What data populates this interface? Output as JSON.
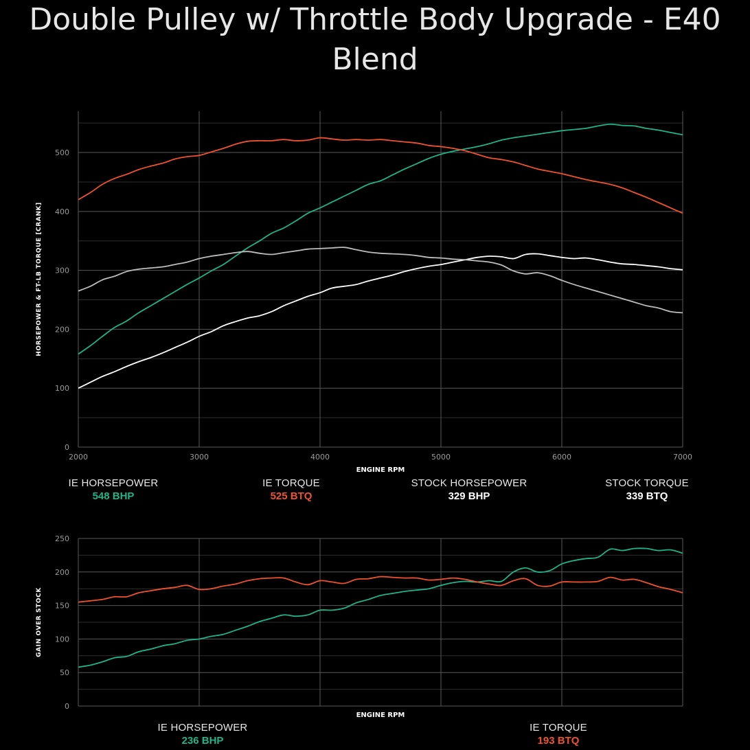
{
  "title": "Double Pulley w/ Throttle Body Upgrade - E40 Blend",
  "colors": {
    "ie_hp": "#1fb489",
    "ie_tq": "#f0522e",
    "stock_hp": "#ffffff",
    "stock_tq": "#bdbdbd",
    "grid_major": "#5a5a5a",
    "grid_minor": "#2e2e2e",
    "axis_text": "#9a9a9a"
  },
  "chart_data": [
    {
      "type": "line",
      "xlabel": "ENGINE RPM",
      "ylabel": "HORSEPOWER & FT-LB TORQUE [CRANK]",
      "xlim": [
        2000,
        7000
      ],
      "ylim": [
        0,
        570
      ],
      "x_ticks": [
        2000,
        3000,
        4000,
        5000,
        6000,
        7000
      ],
      "y_ticks": [
        0,
        100,
        200,
        300,
        400,
        500
      ],
      "grid": true,
      "series": [
        {
          "name": "IE HORSEPOWER",
          "color_key": "ie_hp",
          "x": [
            2000,
            2100,
            2200,
            2300,
            2400,
            2500,
            2600,
            2700,
            2800,
            2900,
            3000,
            3100,
            3200,
            3300,
            3400,
            3500,
            3600,
            3700,
            3800,
            3900,
            4000,
            4100,
            4200,
            4300,
            4400,
            4500,
            4600,
            4700,
            4800,
            4900,
            5000,
            5100,
            5200,
            5300,
            5400,
            5500,
            5600,
            5700,
            5800,
            5900,
            6000,
            6100,
            6200,
            6300,
            6400,
            6500,
            6600,
            6700,
            6800,
            6900,
            7000
          ],
          "y": [
            158,
            172,
            188,
            203,
            214,
            228,
            240,
            252,
            264,
            276,
            287,
            299,
            310,
            324,
            338,
            350,
            363,
            372,
            384,
            397,
            406,
            416,
            426,
            436,
            446,
            452,
            462,
            472,
            481,
            490,
            497,
            502,
            506,
            510,
            515,
            521,
            525,
            528,
            531,
            534,
            537,
            539,
            541,
            545,
            548,
            546,
            545,
            541,
            538,
            534,
            530
          ]
        },
        {
          "name": "IE TORQUE",
          "color_key": "ie_tq",
          "x": [
            2000,
            2100,
            2200,
            2300,
            2400,
            2500,
            2600,
            2700,
            2800,
            2900,
            3000,
            3100,
            3200,
            3300,
            3400,
            3500,
            3600,
            3700,
            3800,
            3900,
            4000,
            4100,
            4200,
            4300,
            4400,
            4500,
            4600,
            4700,
            4800,
            4900,
            5000,
            5100,
            5200,
            5300,
            5400,
            5500,
            5600,
            5700,
            5800,
            5900,
            6000,
            6100,
            6200,
            6300,
            6400,
            6500,
            6600,
            6700,
            6800,
            6900,
            7000
          ],
          "y": [
            420,
            432,
            446,
            456,
            463,
            471,
            477,
            482,
            489,
            493,
            495,
            501,
            507,
            514,
            519,
            520,
            520,
            522,
            520,
            521,
            525,
            523,
            521,
            522,
            521,
            522,
            520,
            518,
            516,
            512,
            510,
            507,
            503,
            497,
            491,
            488,
            484,
            478,
            472,
            468,
            464,
            459,
            454,
            450,
            446,
            440,
            432,
            424,
            415,
            406,
            397
          ]
        },
        {
          "name": "STOCK HORSEPOWER",
          "color_key": "stock_hp",
          "x": [
            2000,
            2100,
            2200,
            2300,
            2400,
            2500,
            2600,
            2700,
            2800,
            2900,
            3000,
            3100,
            3200,
            3300,
            3400,
            3500,
            3600,
            3700,
            3800,
            3900,
            4000,
            4100,
            4200,
            4300,
            4400,
            4500,
            4600,
            4700,
            4800,
            4900,
            5000,
            5100,
            5200,
            5300,
            5400,
            5500,
            5600,
            5700,
            5800,
            5900,
            6000,
            6100,
            6200,
            6300,
            6400,
            6500,
            6600,
            6700,
            6800,
            6900,
            7000
          ],
          "y": [
            100,
            110,
            120,
            128,
            137,
            145,
            152,
            160,
            169,
            178,
            188,
            196,
            206,
            213,
            219,
            223,
            230,
            240,
            248,
            256,
            262,
            270,
            273,
            276,
            282,
            287,
            292,
            298,
            303,
            307,
            310,
            314,
            318,
            322,
            324,
            323,
            320,
            327,
            328,
            325,
            322,
            320,
            321,
            318,
            314,
            311,
            310,
            308,
            306,
            303,
            301
          ]
        },
        {
          "name": "STOCK TORQUE",
          "color_key": "stock_tq",
          "x": [
            2000,
            2100,
            2200,
            2300,
            2400,
            2500,
            2600,
            2700,
            2800,
            2900,
            3000,
            3100,
            3200,
            3300,
            3400,
            3500,
            3600,
            3700,
            3800,
            3900,
            4000,
            4100,
            4200,
            4300,
            4400,
            4500,
            4600,
            4700,
            4800,
            4900,
            5000,
            5100,
            5200,
            5300,
            5400,
            5500,
            5600,
            5700,
            5800,
            5900,
            6000,
            6100,
            6200,
            6300,
            6400,
            6500,
            6600,
            6700,
            6800,
            6900,
            7000
          ],
          "y": [
            265,
            273,
            284,
            290,
            298,
            302,
            304,
            306,
            310,
            314,
            320,
            324,
            327,
            330,
            332,
            329,
            327,
            330,
            333,
            336,
            337,
            338,
            339,
            335,
            331,
            329,
            328,
            327,
            325,
            322,
            321,
            319,
            318,
            316,
            314,
            309,
            299,
            294,
            296,
            291,
            283,
            276,
            270,
            264,
            258,
            252,
            246,
            240,
            236,
            230,
            228
          ]
        }
      ],
      "summary": [
        {
          "label": "IE HORSEPOWER",
          "value": "548 BHP",
          "color_key": "ie_hp"
        },
        {
          "label": "IE TORQUE",
          "value": "525 BTQ",
          "color_key": "ie_tq"
        },
        {
          "label": "STOCK HORSEPOWER",
          "value": "329 BHP",
          "color_key": "stock_hp"
        },
        {
          "label": "STOCK TORQUE",
          "value": "339 BTQ",
          "color_key": "stock_hp"
        }
      ]
    },
    {
      "type": "line",
      "xlabel": "ENGINE RPM",
      "ylabel": "GAIN OVER STOCK",
      "xlim": [
        2000,
        7000
      ],
      "ylim": [
        0,
        250
      ],
      "x_ticks": [
        2000,
        3000,
        4000,
        5000,
        6000,
        7000
      ],
      "show_x_tick_labels": false,
      "y_ticks": [
        0,
        50,
        100,
        150,
        200,
        250
      ],
      "grid": true,
      "series": [
        {
          "name": "IE HORSEPOWER",
          "color_key": "ie_hp",
          "x": [
            2000,
            2100,
            2200,
            2300,
            2400,
            2500,
            2600,
            2700,
            2800,
            2900,
            3000,
            3100,
            3200,
            3300,
            3400,
            3500,
            3600,
            3700,
            3800,
            3900,
            4000,
            4100,
            4200,
            4300,
            4400,
            4500,
            4600,
            4700,
            4800,
            4900,
            5000,
            5100,
            5200,
            5300,
            5400,
            5500,
            5600,
            5700,
            5800,
            5900,
            6000,
            6100,
            6200,
            6300,
            6400,
            6500,
            6600,
            6700,
            6800,
            6900,
            7000
          ],
          "y": [
            58,
            61,
            66,
            72,
            74,
            81,
            85,
            90,
            93,
            98,
            100,
            104,
            107,
            113,
            119,
            126,
            131,
            136,
            134,
            136,
            143,
            143,
            146,
            154,
            159,
            165,
            168,
            171,
            173,
            175,
            180,
            184,
            186,
            185,
            187,
            186,
            200,
            206,
            200,
            202,
            212,
            217,
            220,
            222,
            234,
            232,
            235,
            235,
            232,
            233,
            228
          ]
        },
        {
          "name": "IE TORQUE",
          "color_key": "ie_tq",
          "x": [
            2000,
            2100,
            2200,
            2300,
            2400,
            2500,
            2600,
            2700,
            2800,
            2900,
            3000,
            3100,
            3200,
            3300,
            3400,
            3500,
            3600,
            3700,
            3800,
            3900,
            4000,
            4100,
            4200,
            4300,
            4400,
            4500,
            4600,
            4700,
            4800,
            4900,
            5000,
            5100,
            5200,
            5300,
            5400,
            5500,
            5600,
            5700,
            5800,
            5900,
            6000,
            6100,
            6200,
            6300,
            6400,
            6500,
            6600,
            6700,
            6800,
            6900,
            7000
          ],
          "y": [
            155,
            157,
            159,
            163,
            163,
            169,
            172,
            175,
            177,
            180,
            174,
            175,
            179,
            182,
            187,
            190,
            191,
            191,
            185,
            181,
            187,
            185,
            183,
            189,
            190,
            193,
            192,
            191,
            191,
            188,
            189,
            191,
            189,
            185,
            182,
            180,
            187,
            190,
            180,
            179,
            185,
            185,
            185,
            186,
            192,
            188,
            189,
            184,
            178,
            174,
            169
          ]
        }
      ],
      "summary": [
        {
          "label": "IE HORSEPOWER",
          "value": "236 BHP",
          "color_key": "ie_hp"
        },
        {
          "label": "IE TORQUE",
          "value": "193 BTQ",
          "color_key": "ie_tq"
        }
      ]
    }
  ]
}
